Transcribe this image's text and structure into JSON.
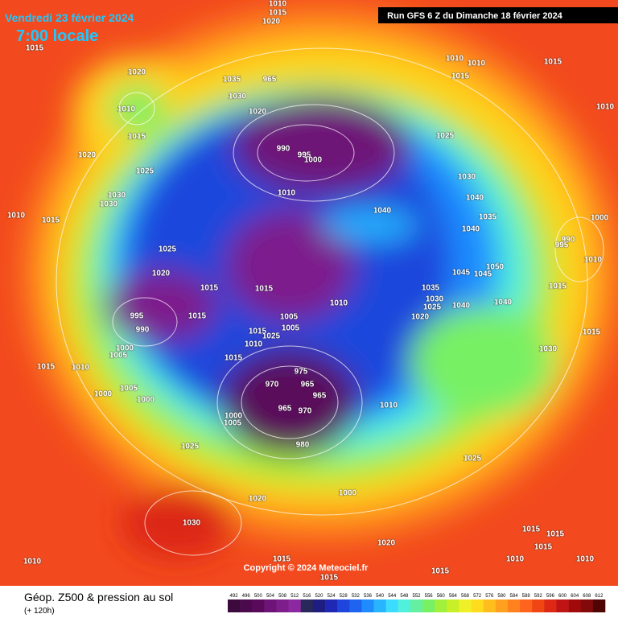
{
  "header": {
    "date": "Vendredi 23 février 2024",
    "time": "7:00 locale",
    "run": "Run GFS 6 Z du Dimanche 18 février 2024"
  },
  "copyright": "Copyright © 2024 Meteociel.fr",
  "footer": {
    "title": "Géop. Z500 & pression au sol",
    "lead": "(+ 120h)"
  },
  "colorbar": {
    "ticks": [
      492,
      496,
      500,
      504,
      508,
      512,
      516,
      520,
      524,
      528,
      532,
      536,
      540,
      544,
      548,
      552,
      556,
      560,
      564,
      568,
      572,
      576,
      580,
      584,
      588,
      592,
      596,
      600,
      604,
      608,
      612
    ],
    "colors": [
      "#3c0a3c",
      "#4b0a4b",
      "#5a0a5a",
      "#6e1478",
      "#7d1e8c",
      "#8c28a0",
      "#28285a",
      "#1e1e82",
      "#1e28b4",
      "#1e46dc",
      "#1e64f0",
      "#1e8cff",
      "#28b4ff",
      "#3cdcff",
      "#50f0dc",
      "#64f0a0",
      "#78f064",
      "#a0f03c",
      "#c8f028",
      "#f0f028",
      "#ffdc1e",
      "#ffbe1e",
      "#ffa01e",
      "#ff821e",
      "#ff641e",
      "#f04614",
      "#dc2814",
      "#be1414",
      "#a00a0a",
      "#820a0a",
      "#500505"
    ]
  },
  "isobar_labels": [
    1010,
    1015,
    1020,
    1015,
    1020,
    1010,
    1010,
    1015,
    1035,
    965,
    1015,
    1010,
    1030,
    1020,
    1010,
    1015,
    1025,
    990,
    995,
    1000,
    1020,
    1025,
    1030,
    1010,
    1030,
    1030,
    1040,
    1040,
    1010,
    1015,
    1035,
    1000,
    1040,
    1025,
    990,
    995,
    1050,
    1045,
    1045,
    1010,
    1020,
    1015,
    1015,
    1035,
    1030,
    1025,
    1040,
    1010,
    1040,
    1015,
    995,
    1015,
    1005,
    1020,
    990,
    1005,
    1015,
    1025,
    1010,
    1000,
    1005,
    1015,
    1015,
    1030,
    975,
    1015,
    1010,
    970,
    965,
    965,
    1005,
    1000,
    1000,
    1010,
    965,
    970,
    1000,
    1005,
    980,
    1025,
    1025,
    1020,
    1000,
    1030,
    1015,
    1015,
    1015,
    1020,
    1010,
    1015,
    1010,
    1010,
    1015,
    1015
  ]
}
